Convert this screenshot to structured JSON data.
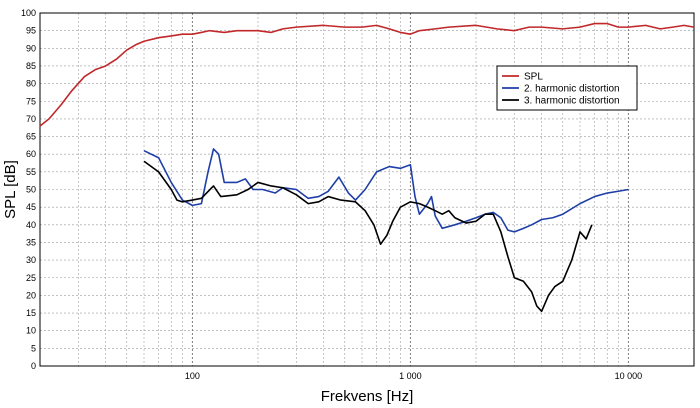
{
  "chart_data": {
    "type": "line",
    "title": "",
    "xlabel": "Frekvens [Hz]",
    "ylabel": "SPL [dB]",
    "xscale": "log",
    "xlim": [
      20,
      20000
    ],
    "ylim": [
      0,
      100
    ],
    "grid": true,
    "legend_position": "top-right",
    "x_tick_labels": [
      {
        "value": 100,
        "label": "100"
      },
      {
        "value": 1000,
        "label": "1 000"
      },
      {
        "value": 10000,
        "label": "10 000"
      }
    ],
    "y_ticks": [
      0,
      5,
      10,
      15,
      20,
      25,
      30,
      35,
      40,
      45,
      50,
      55,
      60,
      65,
      70,
      75,
      80,
      85,
      90,
      95,
      100
    ],
    "series": [
      {
        "name": "SPL",
        "color": "#c0282a",
        "points": [
          [
            20,
            68
          ],
          [
            22,
            70
          ],
          [
            25,
            74
          ],
          [
            28,
            78
          ],
          [
            32,
            82
          ],
          [
            36,
            84
          ],
          [
            40,
            85
          ],
          [
            45,
            87
          ],
          [
            50,
            89.5
          ],
          [
            55,
            91
          ],
          [
            60,
            92
          ],
          [
            70,
            93
          ],
          [
            80,
            93.5
          ],
          [
            90,
            94
          ],
          [
            100,
            94
          ],
          [
            110,
            94.5
          ],
          [
            120,
            95
          ],
          [
            140,
            94.5
          ],
          [
            160,
            95
          ],
          [
            200,
            95
          ],
          [
            230,
            94.5
          ],
          [
            260,
            95.5
          ],
          [
            300,
            96
          ],
          [
            400,
            96.5
          ],
          [
            500,
            96
          ],
          [
            600,
            96
          ],
          [
            700,
            96.5
          ],
          [
            800,
            95.5
          ],
          [
            900,
            94.5
          ],
          [
            1000,
            94
          ],
          [
            1100,
            95
          ],
          [
            1300,
            95.5
          ],
          [
            1500,
            96
          ],
          [
            2000,
            96.5
          ],
          [
            2500,
            95.5
          ],
          [
            3000,
            95
          ],
          [
            3500,
            96
          ],
          [
            4000,
            96
          ],
          [
            5000,
            95.5
          ],
          [
            6000,
            96
          ],
          [
            7000,
            97
          ],
          [
            8000,
            97
          ],
          [
            9000,
            96
          ],
          [
            10000,
            96
          ],
          [
            12000,
            96.5
          ],
          [
            14000,
            95.5
          ],
          [
            16000,
            96
          ],
          [
            18000,
            96.5
          ],
          [
            20000,
            96
          ]
        ]
      },
      {
        "name": "2. harmonic distortion",
        "color": "#1f3fa8",
        "points": [
          [
            60,
            61
          ],
          [
            70,
            59
          ],
          [
            80,
            52
          ],
          [
            90,
            47
          ],
          [
            100,
            45.5
          ],
          [
            110,
            46
          ],
          [
            118,
            55
          ],
          [
            125,
            61.5
          ],
          [
            132,
            60
          ],
          [
            140,
            52
          ],
          [
            160,
            52
          ],
          [
            175,
            53
          ],
          [
            190,
            50
          ],
          [
            210,
            50
          ],
          [
            240,
            49
          ],
          [
            260,
            50.5
          ],
          [
            300,
            50
          ],
          [
            340,
            47.5
          ],
          [
            380,
            48
          ],
          [
            420,
            49.5
          ],
          [
            470,
            53.5
          ],
          [
            520,
            49
          ],
          [
            560,
            47
          ],
          [
            620,
            50
          ],
          [
            700,
            55
          ],
          [
            800,
            56.5
          ],
          [
            900,
            56
          ],
          [
            1000,
            57
          ],
          [
            1050,
            48
          ],
          [
            1100,
            43
          ],
          [
            1200,
            46
          ],
          [
            1250,
            48
          ],
          [
            1300,
            42.5
          ],
          [
            1400,
            39
          ],
          [
            1600,
            40
          ],
          [
            1800,
            41
          ],
          [
            2000,
            42
          ],
          [
            2200,
            43
          ],
          [
            2400,
            43.5
          ],
          [
            2600,
            42
          ],
          [
            2800,
            38.5
          ],
          [
            3000,
            38
          ],
          [
            3300,
            39
          ],
          [
            3600,
            40
          ],
          [
            4000,
            41.5
          ],
          [
            4500,
            42
          ],
          [
            5000,
            43
          ],
          [
            6000,
            46
          ],
          [
            7000,
            48
          ],
          [
            8000,
            49
          ],
          [
            9000,
            49.5
          ],
          [
            10000,
            50
          ]
        ]
      },
      {
        "name": "3. harmonic distortion",
        "color": "#000000",
        "points": [
          [
            60,
            58
          ],
          [
            70,
            55
          ],
          [
            80,
            50
          ],
          [
            85,
            47
          ],
          [
            90,
            46.5
          ],
          [
            100,
            47
          ],
          [
            110,
            47.5
          ],
          [
            125,
            51
          ],
          [
            135,
            48
          ],
          [
            160,
            48.5
          ],
          [
            180,
            50
          ],
          [
            200,
            52
          ],
          [
            230,
            51
          ],
          [
            260,
            50.5
          ],
          [
            300,
            48.5
          ],
          [
            340,
            46
          ],
          [
            380,
            46.5
          ],
          [
            420,
            48
          ],
          [
            480,
            47
          ],
          [
            560,
            46.5
          ],
          [
            620,
            44
          ],
          [
            680,
            40
          ],
          [
            730,
            34.5
          ],
          [
            780,
            37
          ],
          [
            830,
            41
          ],
          [
            900,
            45
          ],
          [
            1000,
            46.5
          ],
          [
            1100,
            46
          ],
          [
            1200,
            45
          ],
          [
            1300,
            44
          ],
          [
            1400,
            43
          ],
          [
            1500,
            44
          ],
          [
            1600,
            42
          ],
          [
            1800,
            40.5
          ],
          [
            2000,
            41
          ],
          [
            2200,
            43
          ],
          [
            2400,
            43
          ],
          [
            2600,
            38
          ],
          [
            2800,
            31
          ],
          [
            3000,
            25
          ],
          [
            3300,
            24
          ],
          [
            3600,
            21
          ],
          [
            3800,
            17
          ],
          [
            4000,
            15.5
          ],
          [
            4300,
            20
          ],
          [
            4600,
            22.5
          ],
          [
            5000,
            24
          ],
          [
            5500,
            30
          ],
          [
            6000,
            38
          ],
          [
            6400,
            36
          ],
          [
            6800,
            40
          ]
        ]
      }
    ]
  }
}
